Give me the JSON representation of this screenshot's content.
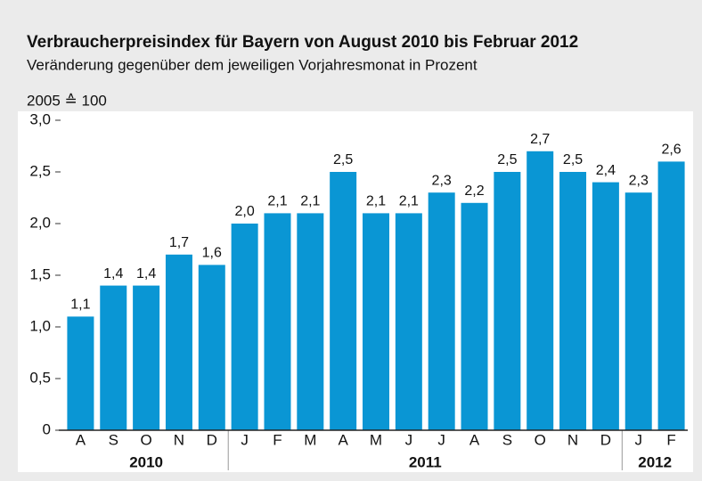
{
  "chart_data": {
    "type": "bar",
    "title": "Verbraucherpreisindex für Bayern von August 2010 bis Februar 2012",
    "subtitle": "Veränderung gegenüber dem jeweiligen Vorjahresmonat in Prozent",
    "y_label": "2005 ≙ 100",
    "color": "#0a96d4",
    "ylim": [
      0,
      3
    ],
    "yticks": [
      0,
      {
        "value": 0.5,
        "label": "0,5"
      },
      {
        "value": 1,
        "label": "1,0"
      },
      {
        "value": 1.5,
        "label": "1,5"
      },
      {
        "value": 2,
        "label": "2,0"
      },
      {
        "value": 2.5,
        "label": "2,5"
      },
      {
        "value": 3,
        "label": "3,0"
      }
    ],
    "groups": [
      {
        "label": "2010",
        "categories": [
          "A",
          "S",
          "O",
          "N",
          "D"
        ],
        "values": [
          1.1,
          1.4,
          1.4,
          1.7,
          1.6
        ],
        "value_labels": [
          "1,1",
          "1,4",
          "1,4",
          "1,7",
          "1,6"
        ]
      },
      {
        "label": "2011",
        "categories": [
          "J",
          "F",
          "M",
          "A",
          "M",
          "J",
          "J",
          "A",
          "S",
          "O",
          "N",
          "D"
        ],
        "values": [
          2.0,
          2.1,
          2.1,
          2.5,
          2.1,
          2.1,
          2.3,
          2.2,
          2.5,
          2.7,
          2.5,
          2.4
        ],
        "value_labels": [
          "2,0",
          "2,1",
          "2,1",
          "2,5",
          "2,1",
          "2,1",
          "2,3",
          "2,2",
          "2,5",
          "2,7",
          "2,5",
          "2,4"
        ]
      },
      {
        "label": "2012",
        "categories": [
          "J",
          "F"
        ],
        "values": [
          2.3,
          2.6
        ],
        "value_labels": [
          "2,3",
          "2,6"
        ]
      }
    ]
  }
}
